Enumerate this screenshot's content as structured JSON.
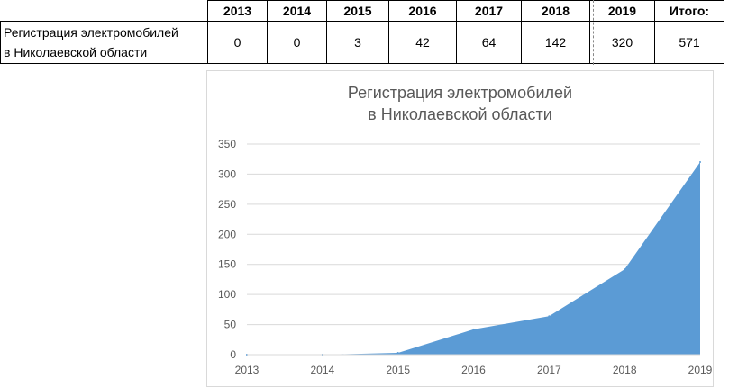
{
  "table": {
    "years": [
      "2013",
      "2014",
      "2015",
      "2016",
      "2017",
      "2018",
      "2019"
    ],
    "total_label": "Итого:",
    "row_label_line1": "Регистрация электромобилей",
    "row_label_line2": "в Николаевской области",
    "values": [
      "0",
      "0",
      "3",
      "42",
      "64",
      "142",
      "320"
    ],
    "total_value": "571"
  },
  "chart_data": {
    "type": "area",
    "title_line1": "Регистрация электромобилей",
    "title_line2": "в Николаевской области",
    "x": [
      "2013",
      "2014",
      "2015",
      "2016",
      "2017",
      "2018",
      "2019"
    ],
    "values": [
      0,
      0,
      3,
      42,
      64,
      142,
      320
    ],
    "ylim": [
      0,
      350
    ],
    "yticks": [
      0,
      50,
      100,
      150,
      200,
      250,
      300,
      350
    ],
    "grid": true,
    "fill_color": "#5b9bd5",
    "grid_color": "#d9d9d9"
  }
}
